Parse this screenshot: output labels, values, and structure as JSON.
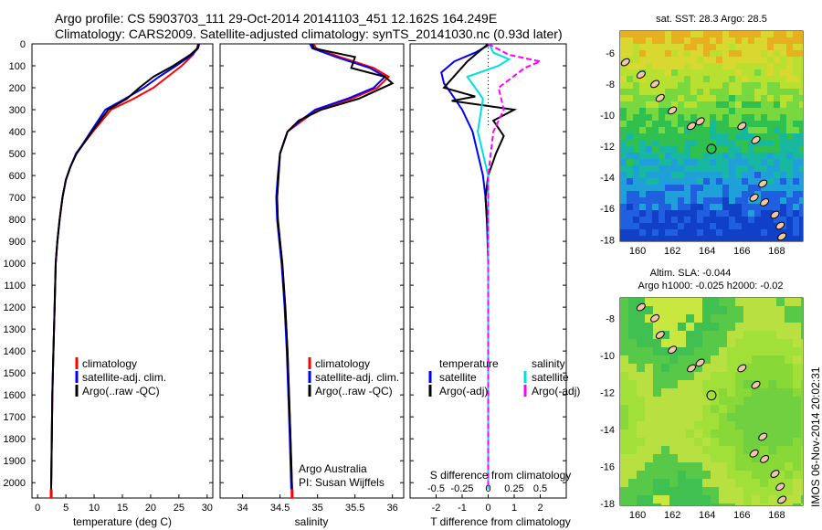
{
  "header": {
    "line1": "Argo profile: CS 5903703_111 29-Oct-2014 20141103_451 12.162S 164.249E",
    "line2": "Climatology: CARS2009. Satellite-adjusted climatology: synTS_20141030.nc (0.93d later)"
  },
  "map_top": {
    "title": "sat. SST: 28.3 Argo: 28.5"
  },
  "map_bottom": {
    "title1": "Altim. SLA: -0.044",
    "title2": "Argo h1000: -0.025 h2000: -0.02"
  },
  "credit": {
    "line1": "Argo Australia",
    "line2": "PI: Susan Wijffels"
  },
  "stamp": "IMOS 06-Nov-2014 20:02:31",
  "diff_legend": {
    "temp_heading": "temperature",
    "temp_sat": "satellite",
    "temp_argo": "Argo(-adj)",
    "sal_heading": "salinity",
    "sal_sat": "satellite",
    "sal_argo": "Argo(-adj)",
    "s_axis_title": "S difference from climatology"
  },
  "colors": {
    "climatology": "#ff0000",
    "satellite": "#0000ff",
    "argo": "#000000",
    "sal_satellite": "#00e0e0",
    "sal_argo": "#ff00ff"
  },
  "chart_data": [
    {
      "type": "line",
      "xlabel": "temperature (deg C)",
      "xlim": [
        -1,
        31
      ],
      "xticks": [
        0,
        5,
        10,
        15,
        20,
        25,
        30
      ],
      "ylim": [
        0,
        2070
      ],
      "yticks": [
        0,
        100,
        200,
        300,
        400,
        500,
        600,
        700,
        800,
        900,
        1000,
        1100,
        1200,
        1300,
        1400,
        1500,
        1600,
        1700,
        1800,
        1900,
        2000
      ],
      "legend": [
        "climatology",
        "satellite-adj. clim.",
        "Argo(..raw -QC)"
      ],
      "series": [
        {
          "name": "climatology",
          "color": "#ff0000",
          "x": [
            28.4,
            28.2,
            27.5,
            25.5,
            23.0,
            20.5,
            17.0,
            13.0,
            9.8,
            8.0,
            6.8,
            5.8,
            5.0,
            4.4,
            3.9,
            3.5,
            3.2,
            3.0,
            2.8,
            2.6,
            2.5,
            2.4
          ],
          "y": [
            0,
            20,
            50,
            100,
            150,
            200,
            250,
            300,
            400,
            460,
            500,
            560,
            620,
            700,
            800,
            900,
            1000,
            1200,
            1400,
            1600,
            1800,
            2030
          ]
        },
        {
          "name": "satellite-adj. clim.",
          "color": "#0000ff",
          "x": [
            28.6,
            28.4,
            27.3,
            24.5,
            21.5,
            18.8,
            15.5,
            12.0,
            9.4,
            7.9,
            6.8,
            5.8,
            5.0,
            4.4,
            3.9,
            3.5,
            3.2,
            3.0,
            2.8,
            2.6,
            2.5,
            2.4
          ],
          "y": [
            0,
            20,
            50,
            100,
            150,
            200,
            250,
            300,
            400,
            460,
            500,
            560,
            620,
            700,
            800,
            900,
            1000,
            1200,
            1400,
            1600,
            1800,
            2030
          ]
        },
        {
          "name": "Argo(..raw -QC)",
          "color": "#000000",
          "x": [
            28.5,
            28.3,
            27.0,
            24.0,
            20.5,
            18.0,
            15.8,
            12.5,
            9.6,
            8.0,
            6.9,
            5.8,
            5.0,
            4.4,
            3.9,
            3.5,
            3.2,
            3.0,
            2.8,
            2.6,
            2.5,
            2.4
          ],
          "y": [
            0,
            20,
            50,
            100,
            150,
            200,
            250,
            300,
            400,
            460,
            500,
            560,
            620,
            700,
            800,
            900,
            1000,
            1200,
            1400,
            1600,
            1800,
            2030
          ]
        }
      ]
    },
    {
      "type": "line",
      "xlabel": "salinity",
      "xlim": [
        33.7,
        36.15
      ],
      "xticks": [
        34,
        34.5,
        35,
        35.5,
        36
      ],
      "ylim": [
        0,
        2070
      ],
      "legend": [
        "climatology",
        "satellite-adj. clim.",
        "Argo(..raw -QC)"
      ],
      "series": [
        {
          "name": "climatology",
          "color": "#ff0000",
          "x": [
            34.95,
            34.98,
            35.3,
            35.75,
            35.95,
            35.8,
            35.45,
            35.0,
            34.8,
            34.6,
            34.55,
            34.5,
            34.48,
            34.46,
            34.47,
            34.5,
            34.53,
            34.57,
            34.6,
            34.62,
            34.64,
            34.66
          ],
          "y": [
            0,
            20,
            60,
            110,
            150,
            200,
            250,
            300,
            350,
            400,
            450,
            500,
            600,
            700,
            800,
            900,
            1000,
            1200,
            1400,
            1600,
            1800,
            2030
          ]
        },
        {
          "name": "satellite-adj. clim.",
          "color": "#0000ff",
          "x": [
            34.9,
            34.93,
            35.25,
            35.7,
            35.9,
            35.75,
            35.4,
            34.97,
            34.77,
            34.6,
            34.55,
            34.5,
            34.47,
            34.45,
            34.46,
            34.49,
            34.52,
            34.56,
            34.59,
            34.61,
            34.63,
            34.65
          ],
          "y": [
            0,
            20,
            60,
            110,
            150,
            200,
            250,
            300,
            350,
            400,
            450,
            500,
            600,
            700,
            800,
            900,
            1000,
            1200,
            1400,
            1600,
            1800,
            2030
          ]
        },
        {
          "name": "Argo(..raw -QC)",
          "color": "#000000",
          "x": [
            34.93,
            34.95,
            35.5,
            35.45,
            35.9,
            36.0,
            35.55,
            35.05,
            34.75,
            34.6,
            34.55,
            34.5,
            34.48,
            34.46,
            34.47,
            34.5,
            34.53,
            34.57,
            34.6,
            34.62,
            34.64,
            34.66
          ],
          "y": [
            0,
            20,
            60,
            110,
            150,
            180,
            250,
            300,
            350,
            400,
            450,
            500,
            600,
            700,
            800,
            900,
            1000,
            1200,
            1400,
            1600,
            1800,
            2030
          ]
        }
      ]
    },
    {
      "type": "line",
      "xlabel": "T difference from climatology",
      "xticks_T": [
        -2,
        -1,
        0,
        1,
        2
      ],
      "xlim_T": [
        -3,
        3
      ],
      "xticks_S": [
        -0.5,
        -0.25,
        0,
        0.25,
        0.5
      ],
      "xlim_S": [
        -0.75,
        0.75
      ],
      "ylim": [
        0,
        2070
      ],
      "series": [
        {
          "name": "temperature satellite",
          "color": "#0000ff",
          "axis": "T",
          "x": [
            0.1,
            -0.5,
            -1.3,
            -1.8,
            -1.7,
            -1.4,
            -1.0,
            -0.6,
            -0.4,
            -0.2,
            -0.1,
            -0.05,
            0,
            0,
            0
          ],
          "y": [
            0,
            40,
            80,
            130,
            180,
            230,
            300,
            400,
            500,
            600,
            700,
            800,
            1000,
            1500,
            2030
          ]
        },
        {
          "name": "temperature Argo(-adj)",
          "color": "#000000",
          "axis": "T",
          "x": [
            0,
            -0.8,
            -1.1,
            -1.7,
            -0.5,
            -1.4,
            1.0,
            0.2,
            0.6,
            0.3,
            0,
            -0.1,
            0,
            0,
            0
          ],
          "y": [
            0,
            80,
            120,
            200,
            240,
            260,
            300,
            350,
            420,
            500,
            600,
            700,
            900,
            1500,
            2030
          ]
        },
        {
          "name": "salinity satellite",
          "color": "#00e0e0",
          "axis": "S",
          "x": [
            0.01,
            0.05,
            0.2,
            0.1,
            -0.2,
            -0.05,
            -0.1,
            0,
            0,
            0,
            0,
            0
          ],
          "y": [
            0,
            40,
            70,
            100,
            150,
            250,
            400,
            600,
            800,
            1000,
            1500,
            2030
          ]
        },
        {
          "name": "salinity Argo(-adj)",
          "color": "#ff00ff",
          "axis": "S",
          "x": [
            0,
            0.2,
            0.5,
            0.35,
            0.1,
            0.15,
            0.05,
            0,
            0,
            0,
            0,
            0
          ],
          "y": [
            0,
            50,
            80,
            110,
            200,
            300,
            400,
            600,
            800,
            1000,
            1500,
            2030
          ]
        }
      ]
    },
    {
      "type": "heatmap",
      "title": "sat. SST: 28.3 Argo: 28.5",
      "xlim": [
        159,
        169.5
      ],
      "xticks": [
        160,
        162,
        164,
        166,
        168
      ],
      "ylim": [
        -18.1,
        -4.6
      ],
      "yticks": [
        -6,
        -8,
        -10,
        -12,
        -14,
        -16,
        -18
      ],
      "marker": {
        "lon": 164.249,
        "lat": -12.162
      }
    },
    {
      "type": "heatmap",
      "title": "Altim. SLA: -0.044 / Argo h1000: -0.025 h2000: -0.02",
      "xlim": [
        159,
        169.5
      ],
      "xticks": [
        160,
        162,
        164,
        166,
        168
      ],
      "ylim": [
        -18.1,
        -6.9
      ],
      "yticks": [
        -8,
        -10,
        -12,
        -14,
        -16,
        -18
      ],
      "marker": {
        "lon": 164.249,
        "lat": -12.162
      }
    }
  ]
}
